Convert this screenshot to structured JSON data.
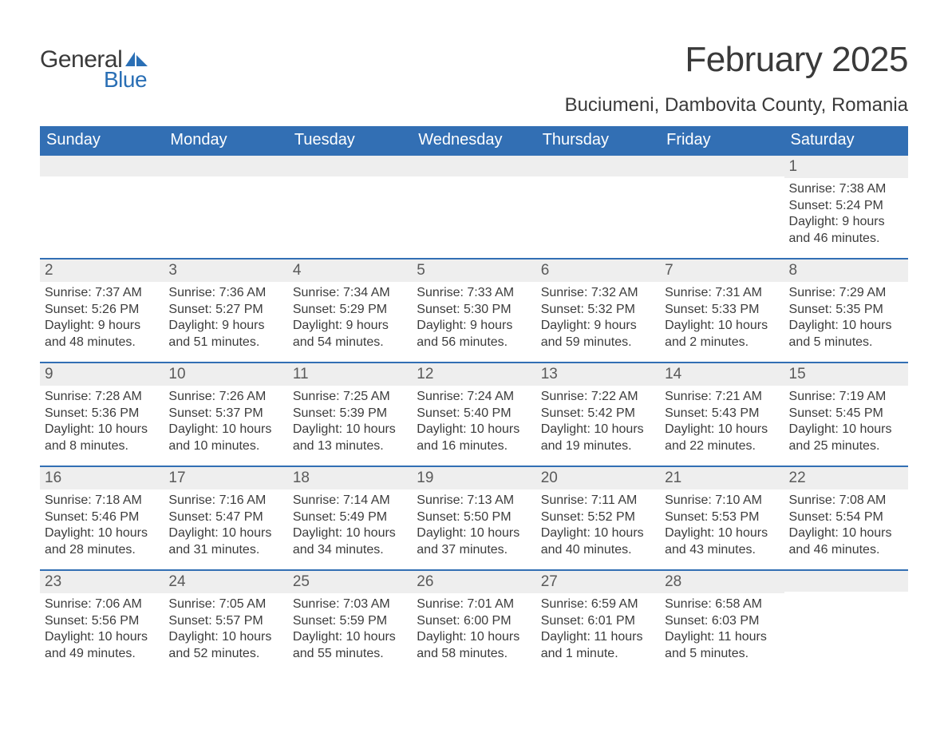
{
  "logo": {
    "word1": "General",
    "word2": "Blue",
    "sail_color": "#2a6fb5"
  },
  "title": "February 2025",
  "location": "Buciumeni, Dambovita County, Romania",
  "colors": {
    "header_bg": "#326fb4",
    "header_text": "#ffffff",
    "day_bar_bg": "#eeeeee",
    "rule": "#326fb4",
    "text": "#3c3c3c",
    "page_bg": "#ffffff"
  },
  "fonts": {
    "title_size": 44,
    "location_size": 24,
    "weekday_size": 20,
    "daynum_size": 19,
    "body_size": 16
  },
  "weekdays": [
    "Sunday",
    "Monday",
    "Tuesday",
    "Wednesday",
    "Thursday",
    "Friday",
    "Saturday"
  ],
  "weeks": [
    [
      {
        "day": "",
        "lines": []
      },
      {
        "day": "",
        "lines": []
      },
      {
        "day": "",
        "lines": []
      },
      {
        "day": "",
        "lines": []
      },
      {
        "day": "",
        "lines": []
      },
      {
        "day": "",
        "lines": []
      },
      {
        "day": "1",
        "lines": [
          "Sunrise: 7:38 AM",
          "Sunset: 5:24 PM",
          "Daylight: 9 hours and 46 minutes."
        ]
      }
    ],
    [
      {
        "day": "2",
        "lines": [
          "Sunrise: 7:37 AM",
          "Sunset: 5:26 PM",
          "Daylight: 9 hours and 48 minutes."
        ]
      },
      {
        "day": "3",
        "lines": [
          "Sunrise: 7:36 AM",
          "Sunset: 5:27 PM",
          "Daylight: 9 hours and 51 minutes."
        ]
      },
      {
        "day": "4",
        "lines": [
          "Sunrise: 7:34 AM",
          "Sunset: 5:29 PM",
          "Daylight: 9 hours and 54 minutes."
        ]
      },
      {
        "day": "5",
        "lines": [
          "Sunrise: 7:33 AM",
          "Sunset: 5:30 PM",
          "Daylight: 9 hours and 56 minutes."
        ]
      },
      {
        "day": "6",
        "lines": [
          "Sunrise: 7:32 AM",
          "Sunset: 5:32 PM",
          "Daylight: 9 hours and 59 minutes."
        ]
      },
      {
        "day": "7",
        "lines": [
          "Sunrise: 7:31 AM",
          "Sunset: 5:33 PM",
          "Daylight: 10 hours and 2 minutes."
        ]
      },
      {
        "day": "8",
        "lines": [
          "Sunrise: 7:29 AM",
          "Sunset: 5:35 PM",
          "Daylight: 10 hours and 5 minutes."
        ]
      }
    ],
    [
      {
        "day": "9",
        "lines": [
          "Sunrise: 7:28 AM",
          "Sunset: 5:36 PM",
          "Daylight: 10 hours and 8 minutes."
        ]
      },
      {
        "day": "10",
        "lines": [
          "Sunrise: 7:26 AM",
          "Sunset: 5:37 PM",
          "Daylight: 10 hours and 10 minutes."
        ]
      },
      {
        "day": "11",
        "lines": [
          "Sunrise: 7:25 AM",
          "Sunset: 5:39 PM",
          "Daylight: 10 hours and 13 minutes."
        ]
      },
      {
        "day": "12",
        "lines": [
          "Sunrise: 7:24 AM",
          "Sunset: 5:40 PM",
          "Daylight: 10 hours and 16 minutes."
        ]
      },
      {
        "day": "13",
        "lines": [
          "Sunrise: 7:22 AM",
          "Sunset: 5:42 PM",
          "Daylight: 10 hours and 19 minutes."
        ]
      },
      {
        "day": "14",
        "lines": [
          "Sunrise: 7:21 AM",
          "Sunset: 5:43 PM",
          "Daylight: 10 hours and 22 minutes."
        ]
      },
      {
        "day": "15",
        "lines": [
          "Sunrise: 7:19 AM",
          "Sunset: 5:45 PM",
          "Daylight: 10 hours and 25 minutes."
        ]
      }
    ],
    [
      {
        "day": "16",
        "lines": [
          "Sunrise: 7:18 AM",
          "Sunset: 5:46 PM",
          "Daylight: 10 hours and 28 minutes."
        ]
      },
      {
        "day": "17",
        "lines": [
          "Sunrise: 7:16 AM",
          "Sunset: 5:47 PM",
          "Daylight: 10 hours and 31 minutes."
        ]
      },
      {
        "day": "18",
        "lines": [
          "Sunrise: 7:14 AM",
          "Sunset: 5:49 PM",
          "Daylight: 10 hours and 34 minutes."
        ]
      },
      {
        "day": "19",
        "lines": [
          "Sunrise: 7:13 AM",
          "Sunset: 5:50 PM",
          "Daylight: 10 hours and 37 minutes."
        ]
      },
      {
        "day": "20",
        "lines": [
          "Sunrise: 7:11 AM",
          "Sunset: 5:52 PM",
          "Daylight: 10 hours and 40 minutes."
        ]
      },
      {
        "day": "21",
        "lines": [
          "Sunrise: 7:10 AM",
          "Sunset: 5:53 PM",
          "Daylight: 10 hours and 43 minutes."
        ]
      },
      {
        "day": "22",
        "lines": [
          "Sunrise: 7:08 AM",
          "Sunset: 5:54 PM",
          "Daylight: 10 hours and 46 minutes."
        ]
      }
    ],
    [
      {
        "day": "23",
        "lines": [
          "Sunrise: 7:06 AM",
          "Sunset: 5:56 PM",
          "Daylight: 10 hours and 49 minutes."
        ]
      },
      {
        "day": "24",
        "lines": [
          "Sunrise: 7:05 AM",
          "Sunset: 5:57 PM",
          "Daylight: 10 hours and 52 minutes."
        ]
      },
      {
        "day": "25",
        "lines": [
          "Sunrise: 7:03 AM",
          "Sunset: 5:59 PM",
          "Daylight: 10 hours and 55 minutes."
        ]
      },
      {
        "day": "26",
        "lines": [
          "Sunrise: 7:01 AM",
          "Sunset: 6:00 PM",
          "Daylight: 10 hours and 58 minutes."
        ]
      },
      {
        "day": "27",
        "lines": [
          "Sunrise: 6:59 AM",
          "Sunset: 6:01 PM",
          "Daylight: 11 hours and 1 minute."
        ]
      },
      {
        "day": "28",
        "lines": [
          "Sunrise: 6:58 AM",
          "Sunset: 6:03 PM",
          "Daylight: 11 hours and 5 minutes."
        ]
      },
      {
        "day": "",
        "lines": []
      }
    ]
  ]
}
